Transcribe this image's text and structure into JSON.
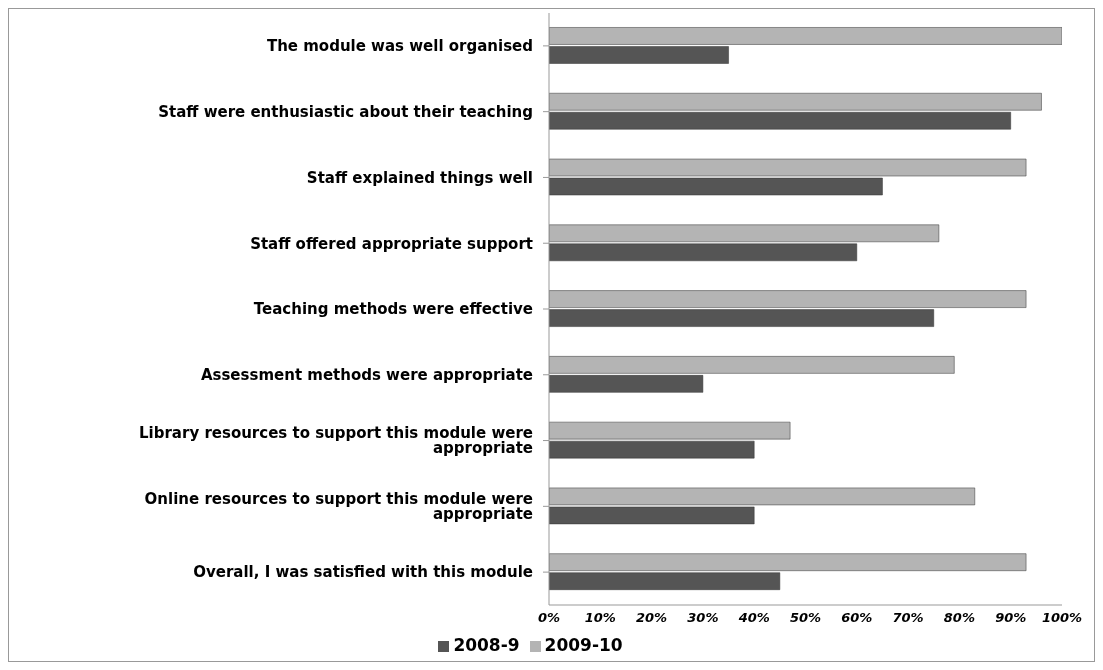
{
  "chart_data": {
    "type": "bar",
    "orientation": "horizontal",
    "categories": [
      "The module was well organised",
      "Staff were enthusiastic about their teaching",
      "Staff explained things well",
      "Staff offered appropriate support",
      "Teaching methods were effective",
      "Assessment methods were appropriate",
      "Library resources to support this module were appropriate",
      "Online resources to support this module were appropriate",
      "Overall, I was satisfied with this module"
    ],
    "series": [
      {
        "name": "2009-10",
        "color": "#b4b4b4",
        "values": [
          100,
          96,
          93,
          76,
          93,
          79,
          47,
          83,
          93
        ]
      },
      {
        "name": "2008-9",
        "color": "#555555",
        "values": [
          35,
          90,
          65,
          60,
          75,
          30,
          40,
          40,
          45
        ]
      }
    ],
    "xlim": [
      0,
      100
    ],
    "xticks": [
      {
        "value": 0,
        "label": "0%"
      },
      {
        "value": 10,
        "label": "10%"
      },
      {
        "value": 20,
        "label": "20%"
      },
      {
        "value": 30,
        "label": "30%"
      },
      {
        "value": 40,
        "label": "40%"
      },
      {
        "value": 50,
        "label": "50%"
      },
      {
        "value": 60,
        "label": "60%"
      },
      {
        "value": 70,
        "label": "70%"
      },
      {
        "value": 80,
        "label": "80%"
      },
      {
        "value": 90,
        "label": "90%"
      },
      {
        "value": 100,
        "label": "100%"
      }
    ],
    "grid": false,
    "legend": "bottom"
  }
}
